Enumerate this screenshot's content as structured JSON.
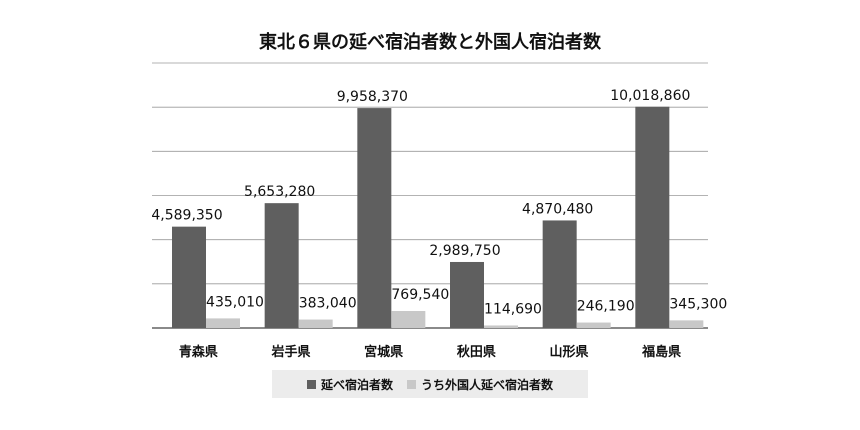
{
  "chart_data": {
    "type": "bar",
    "title": "東北６県の延べ宿泊者数と外国人宿泊者数",
    "categories": [
      "青森県",
      "岩手県",
      "宮城県",
      "秋田県",
      "山形県",
      "福島県"
    ],
    "series": [
      {
        "name": "延べ宿泊者数",
        "color": "#5f5f5f",
        "values": [
          4589350,
          5653280,
          9958370,
          2989750,
          4870480,
          10018860
        ],
        "labels": [
          "4,589,350",
          "5,653,280",
          "9,958,370",
          "2,989,750",
          "4,870,480",
          "10,018,860"
        ]
      },
      {
        "name": "うち外国人延べ宿泊者数",
        "color": "#c8c8c8",
        "values": [
          435010,
          383040,
          769540,
          114690,
          246190,
          345300
        ],
        "labels": [
          "435,010",
          "383,040",
          "769,540",
          "114,690",
          "246,190",
          "345,300"
        ]
      }
    ],
    "ylim": [
      0,
      12000000
    ],
    "grid": true,
    "legend_position": "bottom"
  }
}
